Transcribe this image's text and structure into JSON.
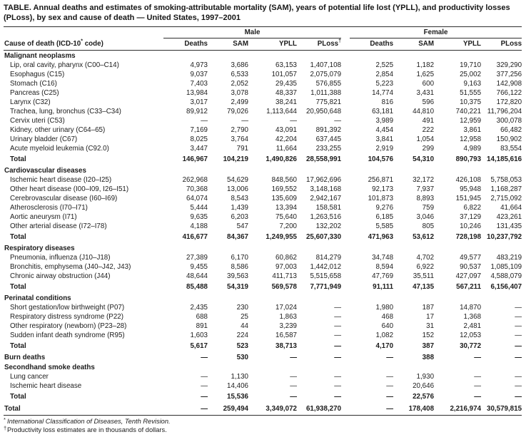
{
  "title": "TABLE. Annual deaths and estimates of smoking-attributable mortality (SAM), years of potential life lost (YPLL), and productivity losses (PLoss), by sex and cause of death — United States, 1997–2001",
  "header": {
    "cause_label": "Cause of death (ICD-10* code)",
    "groups": [
      {
        "label": "Male"
      },
      {
        "label": "Female"
      }
    ],
    "male_columns": [
      "Deaths",
      "SAM",
      "YPLL",
      "PLoss†"
    ],
    "female_columns": [
      "Deaths",
      "SAM",
      "YPLL",
      "PLoss"
    ]
  },
  "sections": [
    {
      "name": "Malignant neoplasms",
      "rows": [
        {
          "label": "Lip, oral cavity, pharynx (C00–C14)",
          "values": [
            "4,973",
            "3,686",
            "63,153",
            "1,407,108",
            "2,525",
            "1,182",
            "19,710",
            "329,290"
          ]
        },
        {
          "label": "Esophagus (C15)",
          "values": [
            "9,037",
            "6,533",
            "101,057",
            "2,075,079",
            "2,854",
            "1,625",
            "25,002",
            "377,256"
          ]
        },
        {
          "label": "Stomach (C16)",
          "values": [
            "7,403",
            "2,052",
            "29,435",
            "576,855",
            "5,223",
            "600",
            "9,163",
            "142,908"
          ]
        },
        {
          "label": "Pancreas (C25)",
          "values": [
            "13,984",
            "3,078",
            "48,337",
            "1,011,388",
            "14,774",
            "3,431",
            "51,555",
            "766,122"
          ]
        },
        {
          "label": "Larynx (C32)",
          "values": [
            "3,017",
            "2,499",
            "38,241",
            "775,821",
            "816",
            "596",
            "10,375",
            "172,820"
          ]
        },
        {
          "label": "Trachea, lung, bronchus (C33–C34)",
          "values": [
            "89,912",
            "79,026",
            "1,113,644",
            "20,950,648",
            "63,181",
            "44,810",
            "740,221",
            "11,796,204"
          ]
        },
        {
          "label": "Cervix uteri (C53)",
          "values": [
            "—",
            "—",
            "—",
            "—",
            "3,989",
            "491",
            "12,959",
            "300,078"
          ]
        },
        {
          "label": "Kidney, other urinary (C64–65)",
          "values": [
            "7,169",
            "2,790",
            "43,091",
            "891,392",
            "4,454",
            "222",
            "3,861",
            "66,482"
          ]
        },
        {
          "label": "Urinary bladder (C67)",
          "values": [
            "8,025",
            "3,764",
            "42,204",
            "637,445",
            "3,841",
            "1,054",
            "12,958",
            "150,902"
          ]
        },
        {
          "label": "Acute myeloid leukemia (C92.0)",
          "values": [
            "3,447",
            "791",
            "11,664",
            "233,255",
            "2,919",
            "299",
            "4,989",
            "83,554"
          ]
        }
      ],
      "total": {
        "label": "Total",
        "values": [
          "146,967",
          "104,219",
          "1,490,826",
          "28,558,991",
          "104,576",
          "54,310",
          "890,793",
          "14,185,616"
        ]
      }
    },
    {
      "name": "Cardiovascular diseases",
      "rows": [
        {
          "label": "Ischemic heart disease (I20–I25)",
          "values": [
            "262,968",
            "54,629",
            "848,560",
            "17,962,696",
            "256,871",
            "32,172",
            "426,108",
            "5,758,053"
          ]
        },
        {
          "label": "Other heart disease (I00–I09, I26–I51)",
          "values": [
            "70,368",
            "13,006",
            "169,552",
            "3,148,168",
            "92,173",
            "7,937",
            "95,948",
            "1,168,287"
          ]
        },
        {
          "label": "Cerebrovascular disease (I60–I69)",
          "values": [
            "64,074",
            "8,543",
            "135,609",
            "2,942,167",
            "101,873",
            "8,893",
            "151,945",
            "2,715,092"
          ]
        },
        {
          "label": "Atherosclerosis (I70–I71)",
          "values": [
            "5,444",
            "1,439",
            "13,394",
            "158,581",
            "9,276",
            "759",
            "6,822",
            "41,664"
          ]
        },
        {
          "label": "Aortic aneurysm (I71)",
          "values": [
            "9,635",
            "6,203",
            "75,640",
            "1,263,516",
            "6,185",
            "3,046",
            "37,129",
            "423,261"
          ]
        },
        {
          "label": "Other arterial disease (I72–I78)",
          "values": [
            "4,188",
            "547",
            "7,200",
            "132,202",
            "5,585",
            "805",
            "10,246",
            "131,435"
          ]
        }
      ],
      "total": {
        "label": "Total",
        "values": [
          "416,677",
          "84,367",
          "1,249,955",
          "25,607,330",
          "471,963",
          "53,612",
          "728,198",
          "10,237,792"
        ]
      }
    },
    {
      "name": "Respiratory diseases",
      "rows": [
        {
          "label": "Pneumonia, influenza (J10–J18)",
          "values": [
            "27,389",
            "6,170",
            "60,862",
            "814,279",
            "34,748",
            "4,702",
            "49,577",
            "483,219"
          ]
        },
        {
          "label": "Bronchitis, emphysema (J40–J42, J43)",
          "values": [
            "9,455",
            "8,586",
            "97,003",
            "1,442,012",
            "8,594",
            "6,922",
            "90,537",
            "1,085,109"
          ]
        },
        {
          "label": "Chronic airway obstruction (J44)",
          "values": [
            "48,644",
            "39,563",
            "411,713",
            "5,515,658",
            "47,769",
            "35,511",
            "427,097",
            "4,588,079"
          ]
        }
      ],
      "total": {
        "label": "Total",
        "values": [
          "85,488",
          "54,319",
          "569,578",
          "7,771,949",
          "91,111",
          "47,135",
          "567,211",
          "6,156,407"
        ]
      }
    },
    {
      "name": "Perinatal conditions",
      "rows": [
        {
          "label": "Short gestation/low birthweight (P07)",
          "values": [
            "2,435",
            "230",
            "17,024",
            "—",
            "1,980",
            "187",
            "14,870",
            "—"
          ]
        },
        {
          "label": "Respiratory distress syndrome (P22)",
          "values": [
            "688",
            "25",
            "1,863",
            "—",
            "468",
            "17",
            "1,368",
            "—"
          ]
        },
        {
          "label": "Other respiratory (newborn) (P23–28)",
          "values": [
            "891",
            "44",
            "3,239",
            "—",
            "640",
            "31",
            "2,481",
            "—"
          ]
        },
        {
          "label": "Sudden infant death syndrome (R95)",
          "values": [
            "1,603",
            "224",
            "16,587",
            "—",
            "1,082",
            "152",
            "12,053",
            "—"
          ]
        }
      ],
      "total": {
        "label": "Total",
        "values": [
          "5,617",
          "523",
          "38,713",
          "—",
          "4,170",
          "387",
          "30,772",
          "—"
        ]
      }
    },
    {
      "name": "Burn deaths",
      "values": [
        "—",
        "530",
        "—",
        "—",
        "—",
        "388",
        "—",
        "—"
      ]
    },
    {
      "name": "Secondhand smoke deaths",
      "rows": [
        {
          "label": "Lung cancer",
          "values": [
            "—",
            "1,130",
            "—",
            "—",
            "—",
            "1,930",
            "—",
            "—"
          ]
        },
        {
          "label": "Ischemic heart disease",
          "values": [
            "—",
            "14,406",
            "—",
            "—",
            "—",
            "20,646",
            "—",
            "—"
          ]
        }
      ],
      "total": {
        "label": "Total",
        "values": [
          "—",
          "15,536",
          "—",
          "—",
          "—",
          "22,576",
          "—",
          "—"
        ]
      }
    }
  ],
  "grand_total": {
    "label": "Total",
    "values": [
      "—",
      "259,494",
      "3,349,072",
      "61,938,270",
      "—",
      "178,408",
      "2,216,974",
      "30,579,815"
    ]
  },
  "footnotes": [
    {
      "marker": "*",
      "text": "International Classification of Diseases, Tenth Revision.",
      "italic": true
    },
    {
      "marker": "†",
      "text": "Productivity loss estimates are in thousands of dollars.",
      "italic": false
    }
  ]
}
